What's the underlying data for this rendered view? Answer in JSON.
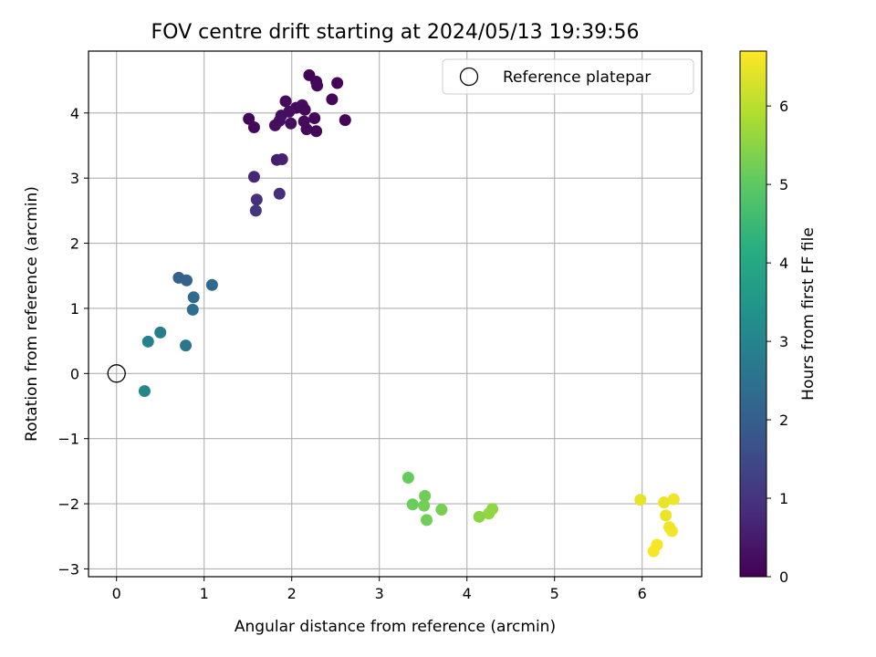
{
  "chart_data": {
    "type": "scatter",
    "title": "FOV centre drift starting at 2024/05/13 19:39:56",
    "xlabel": "Angular distance from reference (arcmin)",
    "ylabel": "Rotation from reference (arcmin)",
    "colorbar_label": "Hours from first FF file",
    "xlim": [
      -0.32,
      6.68
    ],
    "ylim": [
      -3.12,
      4.95
    ],
    "clim": [
      0,
      6.7
    ],
    "colormap": "viridis",
    "x_ticks": [
      0,
      1,
      2,
      3,
      4,
      5,
      6
    ],
    "y_ticks": [
      -3,
      -2,
      -1,
      0,
      1,
      2,
      3,
      4
    ],
    "colorbar_ticks": [
      0,
      1,
      2,
      3,
      4,
      5,
      6
    ],
    "x_tick_labels": [
      "0",
      "1",
      "2",
      "3",
      "4",
      "5",
      "6"
    ],
    "y_tick_labels": [
      "−3",
      "−2",
      "−1",
      "0",
      "1",
      "2",
      "3",
      "4"
    ],
    "colorbar_tick_labels": [
      "0",
      "1",
      "2",
      "3",
      "4",
      "5",
      "6"
    ],
    "grid": true,
    "legend": {
      "position": "upper right",
      "entries": [
        "Reference platepar"
      ]
    },
    "reference_point": {
      "name": "Reference platepar",
      "x": 0,
      "y": 0,
      "marker": "open circle"
    },
    "points": [
      {
        "x": 2.2,
        "y": 4.58,
        "t": 0.05
      },
      {
        "x": 2.28,
        "y": 4.48,
        "t": 0.1
      },
      {
        "x": 2.29,
        "y": 4.42,
        "t": 0.15
      },
      {
        "x": 2.52,
        "y": 4.46,
        "t": 0.08
      },
      {
        "x": 2.46,
        "y": 4.21,
        "t": 0.12
      },
      {
        "x": 1.93,
        "y": 4.18,
        "t": 0.2
      },
      {
        "x": 2.05,
        "y": 4.08,
        "t": 0.18
      },
      {
        "x": 2.12,
        "y": 4.12,
        "t": 0.22
      },
      {
        "x": 1.97,
        "y": 4.02,
        "t": 0.25
      },
      {
        "x": 1.88,
        "y": 3.96,
        "t": 0.28
      },
      {
        "x": 2.15,
        "y": 4.05,
        "t": 0.16
      },
      {
        "x": 1.51,
        "y": 3.91,
        "t": 0.1
      },
      {
        "x": 1.86,
        "y": 3.88,
        "t": 0.3
      },
      {
        "x": 1.99,
        "y": 3.84,
        "t": 0.26
      },
      {
        "x": 2.26,
        "y": 3.92,
        "t": 0.14
      },
      {
        "x": 2.14,
        "y": 3.87,
        "t": 0.2
      },
      {
        "x": 1.81,
        "y": 3.81,
        "t": 0.24
      },
      {
        "x": 1.57,
        "y": 3.78,
        "t": 0.15
      },
      {
        "x": 2.17,
        "y": 3.75,
        "t": 0.18
      },
      {
        "x": 2.28,
        "y": 3.72,
        "t": 0.12
      },
      {
        "x": 2.61,
        "y": 3.89,
        "t": 0.06
      },
      {
        "x": 1.83,
        "y": 3.28,
        "t": 0.55
      },
      {
        "x": 1.89,
        "y": 3.29,
        "t": 0.6
      },
      {
        "x": 1.57,
        "y": 3.02,
        "t": 0.75
      },
      {
        "x": 1.86,
        "y": 2.76,
        "t": 0.85
      },
      {
        "x": 1.6,
        "y": 2.67,
        "t": 0.9
      },
      {
        "x": 1.59,
        "y": 2.5,
        "t": 1.05
      },
      {
        "x": 0.71,
        "y": 1.47,
        "t": 2.05
      },
      {
        "x": 0.8,
        "y": 1.43,
        "t": 2.1
      },
      {
        "x": 1.09,
        "y": 1.36,
        "t": 2.25
      },
      {
        "x": 0.88,
        "y": 1.17,
        "t": 2.3
      },
      {
        "x": 0.87,
        "y": 0.98,
        "t": 2.4
      },
      {
        "x": 0.5,
        "y": 0.63,
        "t": 2.8
      },
      {
        "x": 0.36,
        "y": 0.49,
        "t": 2.9
      },
      {
        "x": 0.79,
        "y": 0.43,
        "t": 2.6
      },
      {
        "x": 0.32,
        "y": -0.27,
        "t": 3.0
      },
      {
        "x": 3.33,
        "y": -1.6,
        "t": 5.1
      },
      {
        "x": 3.52,
        "y": -1.88,
        "t": 5.2
      },
      {
        "x": 3.38,
        "y": -2.01,
        "t": 5.15
      },
      {
        "x": 3.51,
        "y": -2.03,
        "t": 5.25
      },
      {
        "x": 3.71,
        "y": -2.09,
        "t": 5.3
      },
      {
        "x": 3.54,
        "y": -2.25,
        "t": 5.2
      },
      {
        "x": 4.29,
        "y": -2.08,
        "t": 5.55
      },
      {
        "x": 4.25,
        "y": -2.15,
        "t": 5.6
      },
      {
        "x": 4.14,
        "y": -2.2,
        "t": 5.5
      },
      {
        "x": 5.98,
        "y": -1.94,
        "t": 6.45
      },
      {
        "x": 6.25,
        "y": -1.98,
        "t": 6.5
      },
      {
        "x": 6.36,
        "y": -1.93,
        "t": 6.55
      },
      {
        "x": 6.27,
        "y": -2.18,
        "t": 6.52
      },
      {
        "x": 6.31,
        "y": -2.36,
        "t": 6.58
      },
      {
        "x": 6.34,
        "y": -2.42,
        "t": 6.6
      },
      {
        "x": 6.17,
        "y": -2.63,
        "t": 6.62
      },
      {
        "x": 6.13,
        "y": -2.73,
        "t": 6.65
      }
    ]
  }
}
